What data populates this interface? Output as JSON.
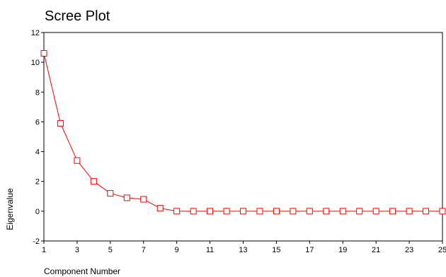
{
  "chart_data": {
    "type": "line",
    "title": "Scree Plot",
    "xlabel": "Component Number",
    "ylabel": "Eigenvalue",
    "x": [
      1,
      2,
      3,
      4,
      5,
      6,
      7,
      8,
      9,
      10,
      11,
      12,
      13,
      14,
      15,
      16,
      17,
      18,
      19,
      20,
      21,
      22,
      23,
      24,
      25
    ],
    "series": [
      {
        "values": [
          10.6,
          5.9,
          3.4,
          2.0,
          1.2,
          0.9,
          0.8,
          0.2,
          0.0,
          0.0,
          0.0,
          0.0,
          0.0,
          0.0,
          0.0,
          0.0,
          0.0,
          0.0,
          0.0,
          0.0,
          0.0,
          0.0,
          0.0,
          0.0,
          0.0
        ],
        "color": "#ff0000",
        "marker": "open-square"
      }
    ],
    "xlim": [
      1,
      25
    ],
    "ylim": [
      -2,
      12
    ],
    "xticks": [
      1,
      3,
      5,
      7,
      9,
      11,
      13,
      15,
      17,
      19,
      21,
      23,
      25
    ],
    "yticks": [
      -2,
      0,
      2,
      4,
      6,
      8,
      10,
      12
    ],
    "grid": false,
    "legend": "none",
    "axis_color": "#000000"
  }
}
